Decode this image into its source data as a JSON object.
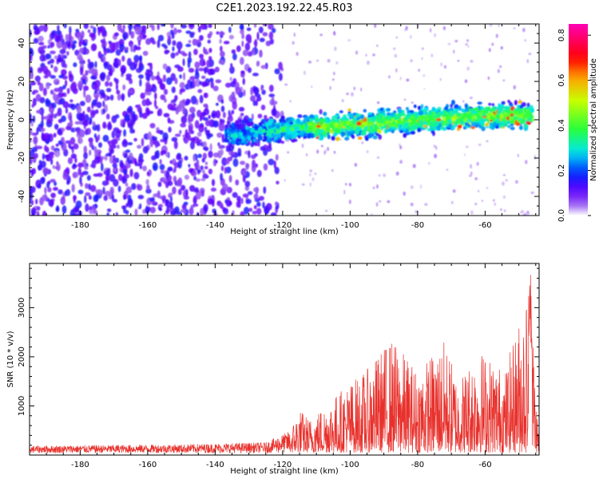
{
  "title": "C2E1.2023.192.22.45.R03",
  "colors": {
    "snr_line": "#e8312c",
    "axis": "#000000"
  },
  "chart_data": [
    {
      "type": "heatmap",
      "xlabel": "Height of straight line (km)",
      "ylabel": "Frequency (Hz)",
      "xlim": [
        -195,
        -44
      ],
      "ylim": [
        -50,
        50
      ],
      "xticks": [
        -180,
        -160,
        -140,
        -120,
        -100,
        -80,
        -60
      ],
      "yticks": [
        -40,
        -20,
        0,
        20,
        40
      ],
      "grid": false,
      "colorbar": {
        "label": "Normalized spectral amplitude",
        "range": [
          0.0,
          0.85
        ],
        "ticks": [
          0.0,
          0.2,
          0.4,
          0.6,
          0.8
        ],
        "colormap": "rainbow-from-white"
      },
      "features": {
        "noise_field": {
          "x_range": [
            -195,
            -120
          ],
          "y_range": [
            -50,
            50
          ],
          "amplitude": [
            0.05,
            0.2
          ]
        },
        "signal_band": {
          "x_range": [
            -137,
            -46
          ],
          "center_freq": [
            [
              -137,
              -8
            ],
            [
              -120,
              -5
            ],
            [
              -100,
              -3
            ],
            [
              -80,
              0
            ],
            [
              -60,
              2
            ],
            [
              -46,
              2
            ]
          ],
          "peak_amplitude": 0.85
        }
      }
    },
    {
      "type": "line",
      "xlabel": "Height of straight line (km)",
      "ylabel": "SNR (10 * v/v)",
      "xlim": [
        -195,
        -44
      ],
      "ylim": [
        0,
        3900
      ],
      "xticks": [
        -180,
        -160,
        -140,
        -120,
        -100,
        -80,
        -60
      ],
      "yticks": [
        1000,
        2000,
        3000
      ],
      "grid": false,
      "series": [
        {
          "color": "#e8312c",
          "envelope": [
            [
              -195,
              150
            ],
            [
              -150,
              180
            ],
            [
              -125,
              220
            ],
            [
              -118,
              450
            ],
            [
              -115,
              900
            ],
            [
              -112,
              700
            ],
            [
              -101,
              1400
            ],
            [
              -95,
              1700
            ],
            [
              -88,
              2350
            ],
            [
              -80,
              1700
            ],
            [
              -72,
              2300
            ],
            [
              -68,
              1500
            ],
            [
              -62,
              2150
            ],
            [
              -54,
              1700
            ],
            [
              -50,
              2700
            ],
            [
              -47.5,
              3300
            ],
            [
              -46.5,
              3850
            ],
            [
              -45,
              1200
            ],
            [
              -44,
              400
            ]
          ]
        }
      ]
    }
  ]
}
